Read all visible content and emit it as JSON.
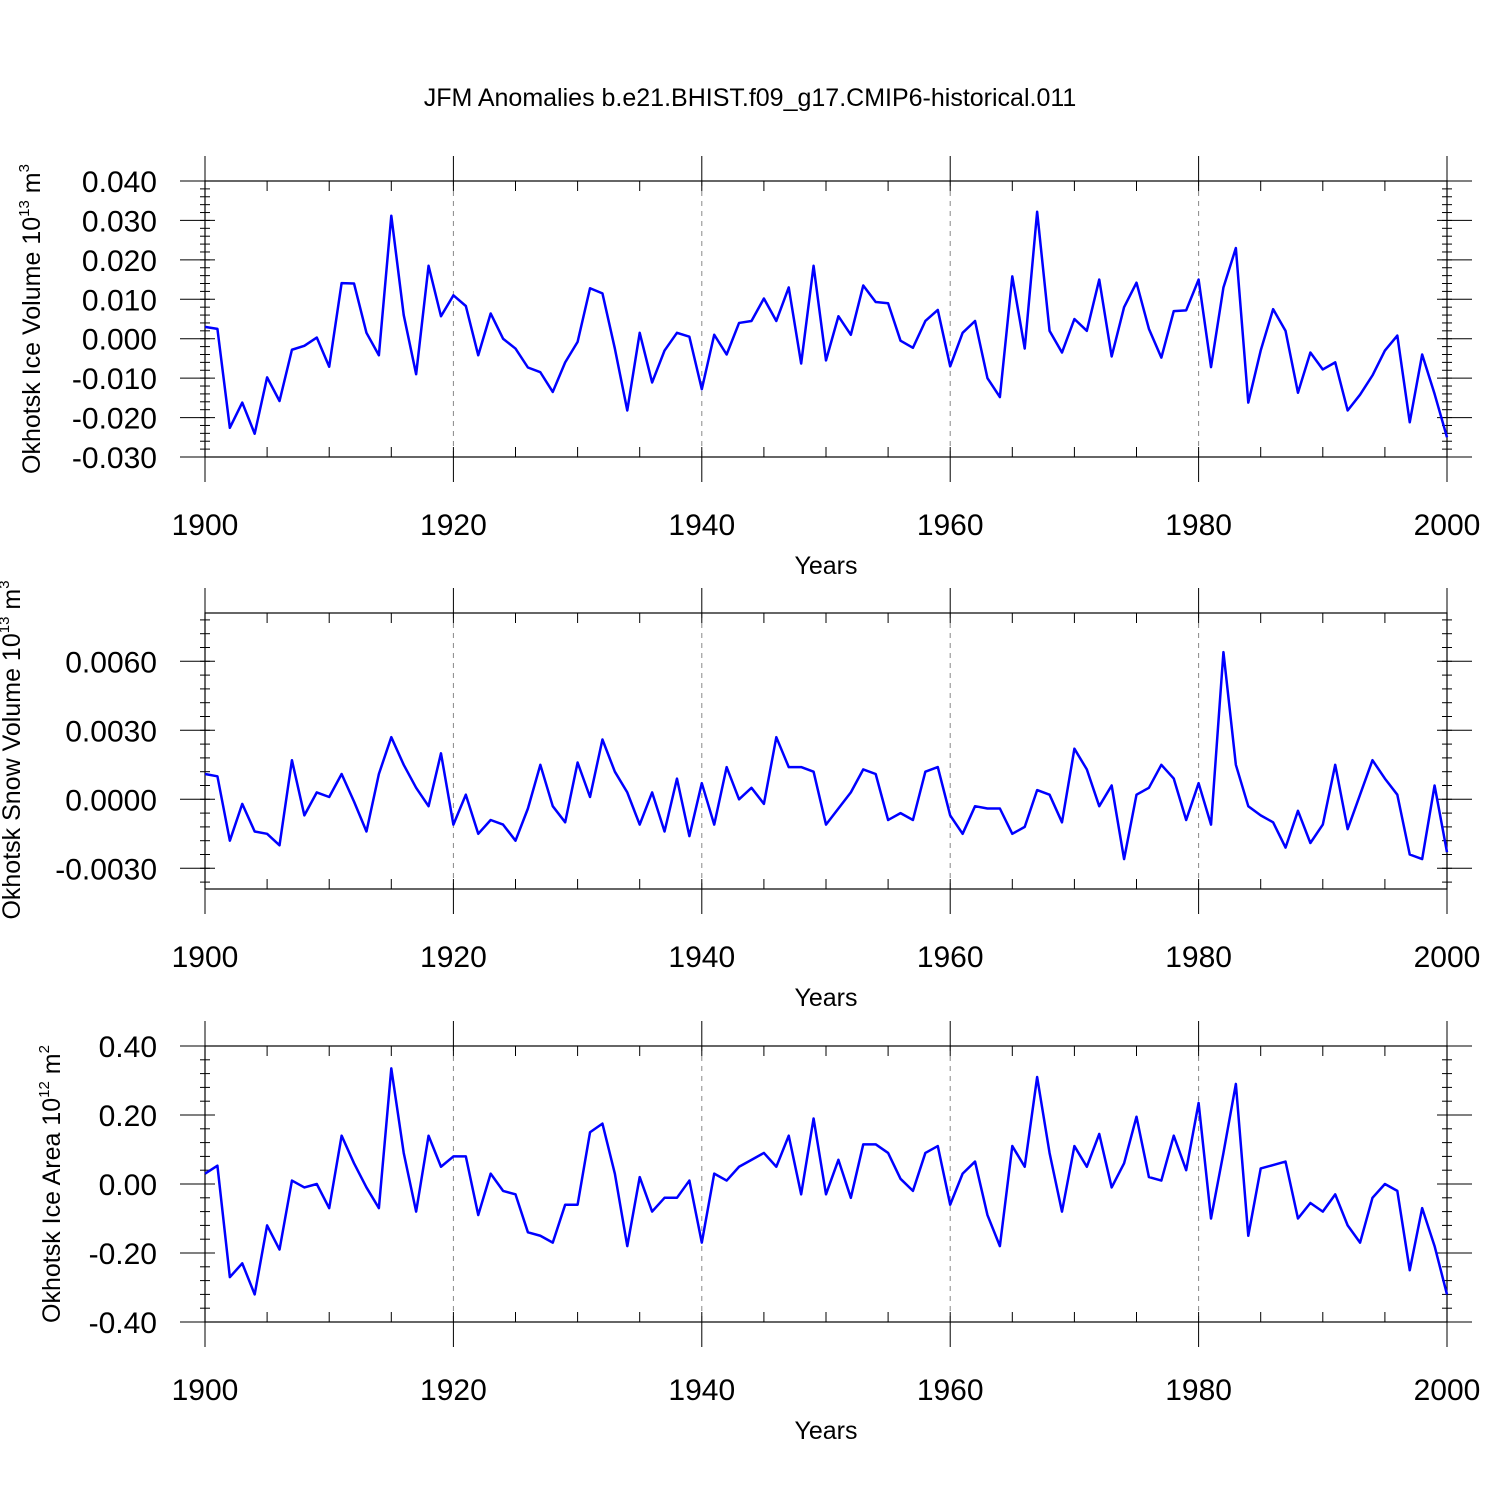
{
  "title": "JFM Anomalies b.e21.BHIST.f09_g17.CMIP6-historical.011",
  "chart_data": [
    {
      "type": "line",
      "name": "ice-volume",
      "ylabel": "Okhotsk Ice Volume 10",
      "ylabel_exp": "13",
      "ylabel_unit": "m",
      "ylabel_unit_exp": "3",
      "xlabel": "Years",
      "xlim": [
        1900,
        2000
      ],
      "ylim": [
        -0.03,
        0.04
      ],
      "yticks": [
        -0.03,
        -0.02,
        -0.01,
        0.0,
        0.01,
        0.02,
        0.03,
        0.04
      ],
      "ytick_labels": [
        "-0.030",
        "-0.020",
        "-0.010",
        "0.000",
        "0.010",
        "0.020",
        "0.030",
        "0.040"
      ],
      "xticks": [
        1900,
        1920,
        1940,
        1960,
        1980,
        2000
      ],
      "xtick_labels": [
        "1900",
        "1920",
        "1940",
        "1960",
        "1980",
        "2000"
      ],
      "color": "#0000ff",
      "x_start": 1900,
      "values": [
        0.003,
        0.0025,
        -0.0226,
        -0.0162,
        -0.0241,
        -0.0098,
        -0.0158,
        -0.0028,
        -0.0018,
        0.0003,
        -0.0071,
        0.0141,
        0.014,
        0.0015,
        -0.0042,
        0.0312,
        0.006,
        -0.009,
        0.0185,
        0.0057,
        0.011,
        0.0083,
        -0.0042,
        0.0064,
        0.0,
        -0.0025,
        -0.0073,
        -0.0085,
        -0.0135,
        -0.006,
        -0.0008,
        0.0128,
        0.0115,
        -0.0025,
        -0.0182,
        0.0015,
        -0.0111,
        -0.003,
        0.0015,
        0.0005,
        -0.0128,
        0.001,
        -0.004,
        0.004,
        0.0045,
        0.0102,
        0.0045,
        0.013,
        -0.0063,
        0.0185,
        -0.0055,
        0.0057,
        0.001,
        0.0135,
        0.0093,
        0.009,
        -0.0005,
        -0.0023,
        0.0045,
        0.0073,
        -0.007,
        0.0015,
        0.0045,
        -0.01,
        -0.0148,
        0.0158,
        -0.0025,
        0.0322,
        0.002,
        -0.0035,
        0.005,
        0.002,
        0.015,
        -0.0045,
        0.008,
        0.0142,
        0.0025,
        -0.0048,
        0.007,
        0.0072,
        0.015,
        -0.0072,
        0.013,
        0.023,
        -0.0162,
        -0.003,
        0.0075,
        0.002,
        -0.0137,
        -0.0035,
        -0.0078,
        -0.006,
        -0.0182,
        -0.0142,
        -0.0093,
        -0.003,
        0.0008,
        -0.0212,
        -0.004,
        -0.014,
        -0.025
      ]
    },
    {
      "type": "line",
      "name": "snow-volume",
      "ylabel": "Okhotsk Snow Volume 10",
      "ylabel_exp": "13",
      "ylabel_unit": "m",
      "ylabel_unit_exp": "3",
      "xlabel": "Years",
      "xlim": [
        1900,
        2000
      ],
      "ylim": [
        -0.0039,
        0.0081
      ],
      "yticks": [
        -0.003,
        0.0,
        0.003,
        0.006
      ],
      "ytick_labels": [
        "-0.0030",
        "0.0000",
        "0.0030",
        "0.0060"
      ],
      "xticks": [
        1900,
        1920,
        1940,
        1960,
        1980,
        2000
      ],
      "xtick_labels": [
        "1900",
        "1920",
        "1940",
        "1960",
        "1980",
        "2000"
      ],
      "color": "#0000ff",
      "x_start": 1900,
      "values": [
        0.0011,
        0.001,
        -0.0018,
        -0.0002,
        -0.0014,
        -0.0015,
        -0.002,
        0.0017,
        -0.0007,
        0.0003,
        0.0001,
        0.0011,
        -0.0001,
        -0.0014,
        0.0011,
        0.0027,
        0.0015,
        0.0005,
        -0.0003,
        0.002,
        -0.0011,
        0.0002,
        -0.0015,
        -0.0009,
        -0.0011,
        -0.0018,
        -0.0004,
        0.0015,
        -0.0003,
        -0.001,
        0.0016,
        0.0001,
        0.0026,
        0.0012,
        0.0003,
        -0.0011,
        0.0003,
        -0.0014,
        0.0009,
        -0.0016,
        0.0007,
        -0.0011,
        0.0014,
        -0.0,
        0.0005,
        -0.0002,
        0.0027,
        0.0014,
        0.0014,
        0.0012,
        -0.0011,
        -0.0004,
        0.0003,
        0.0013,
        0.0011,
        -0.0009,
        -0.0006,
        -0.0009,
        0.0012,
        0.0014,
        -0.0007,
        -0.0015,
        -0.0003,
        -0.0004,
        -0.0004,
        -0.0015,
        -0.0012,
        0.0004,
        0.0002,
        -0.001,
        0.0022,
        0.0013,
        -0.0003,
        0.0006,
        -0.0026,
        0.0002,
        0.0005,
        0.0015,
        0.0009,
        -0.0009,
        0.0007,
        -0.0011,
        0.0064,
        0.0015,
        -0.0003,
        -0.0007,
        -0.001,
        -0.0021,
        -0.0005,
        -0.0019,
        -0.0011,
        0.0015,
        -0.0013,
        0.0002,
        0.0017,
        0.0009,
        0.0002,
        -0.0024,
        -0.0026,
        0.0006,
        -0.0023
      ]
    },
    {
      "type": "line",
      "name": "ice-area",
      "ylabel": "Okhotsk Ice Area 10",
      "ylabel_exp": "12",
      "ylabel_unit": "m",
      "ylabel_unit_exp": "2",
      "xlabel": "Years",
      "xlim": [
        1900,
        2000
      ],
      "ylim": [
        -0.4,
        0.4
      ],
      "yticks": [
        -0.4,
        -0.2,
        0.0,
        0.2,
        0.4
      ],
      "ytick_labels": [
        "-0.40",
        "-0.20",
        "0.00",
        "0.20",
        "0.40"
      ],
      "xticks": [
        1900,
        1920,
        1940,
        1960,
        1980,
        2000
      ],
      "xtick_labels": [
        "1900",
        "1920",
        "1940",
        "1960",
        "1980",
        "2000"
      ],
      "color": "#0000ff",
      "x_start": 1900,
      "values": [
        0.03,
        0.053,
        -0.27,
        -0.23,
        -0.32,
        -0.12,
        -0.19,
        0.01,
        -0.01,
        0.0,
        -0.07,
        0.14,
        0.06,
        -0.01,
        -0.07,
        0.335,
        0.09,
        -0.08,
        0.14,
        0.05,
        0.08,
        0.08,
        -0.09,
        0.03,
        -0.02,
        -0.03,
        -0.14,
        -0.15,
        -0.17,
        -0.06,
        -0.06,
        0.15,
        0.175,
        0.03,
        -0.18,
        0.02,
        -0.08,
        -0.04,
        -0.04,
        0.01,
        -0.17,
        0.03,
        0.01,
        0.05,
        0.07,
        0.09,
        0.05,
        0.14,
        -0.03,
        0.19,
        -0.03,
        0.07,
        -0.04,
        0.115,
        0.115,
        0.09,
        0.015,
        -0.02,
        0.09,
        0.11,
        -0.06,
        0.03,
        0.065,
        -0.09,
        -0.18,
        0.11,
        0.05,
        0.31,
        0.09,
        -0.08,
        0.11,
        0.05,
        0.145,
        -0.01,
        0.06,
        0.195,
        0.02,
        0.01,
        0.14,
        0.04,
        0.235,
        -0.1,
        0.09,
        0.29,
        -0.15,
        0.045,
        0.055,
        0.065,
        -0.1,
        -0.055,
        -0.08,
        -0.03,
        -0.12,
        -0.17,
        -0.04,
        0.0,
        -0.02,
        -0.25,
        -0.07,
        -0.18,
        -0.32
      ]
    }
  ]
}
